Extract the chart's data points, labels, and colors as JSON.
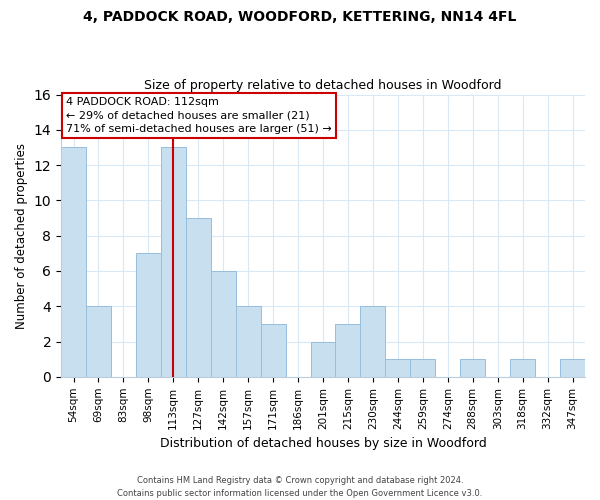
{
  "title1": "4, PADDOCK ROAD, WOODFORD, KETTERING, NN14 4FL",
  "title2": "Size of property relative to detached houses in Woodford",
  "xlabel": "Distribution of detached houses by size in Woodford",
  "ylabel": "Number of detached properties",
  "categories": [
    "54sqm",
    "69sqm",
    "83sqm",
    "98sqm",
    "113sqm",
    "127sqm",
    "142sqm",
    "157sqm",
    "171sqm",
    "186sqm",
    "201sqm",
    "215sqm",
    "230sqm",
    "244sqm",
    "259sqm",
    "274sqm",
    "288sqm",
    "303sqm",
    "318sqm",
    "332sqm",
    "347sqm"
  ],
  "values": [
    13,
    4,
    0,
    7,
    13,
    9,
    6,
    4,
    3,
    0,
    2,
    3,
    4,
    1,
    1,
    0,
    1,
    0,
    1,
    0,
    1
  ],
  "bar_color": "#c8dff0",
  "bar_edge_color": "#96bedd",
  "highlight_index": 4,
  "highlight_line_color": "#cc0000",
  "ylim": [
    0,
    16
  ],
  "yticks": [
    0,
    2,
    4,
    6,
    8,
    10,
    12,
    14,
    16
  ],
  "annotation_box_text_line1": "4 PADDOCK ROAD: 112sqm",
  "annotation_box_text_line2": "← 29% of detached houses are smaller (21)",
  "annotation_box_text_line3": "71% of semi-detached houses are larger (51) →",
  "annotation_box_edge_color": "#cc0000",
  "footer_line1": "Contains HM Land Registry data © Crown copyright and database right 2024.",
  "footer_line2": "Contains public sector information licensed under the Open Government Licence v3.0.",
  "bg_color": "#ffffff",
  "grid_color": "#d8e8f4"
}
